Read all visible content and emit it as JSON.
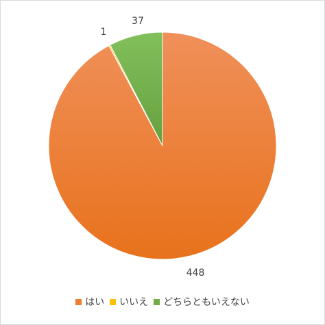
{
  "chart_data": {
    "type": "pie",
    "categories": [
      "はい",
      "いいえ",
      "どちらともいえない"
    ],
    "values": [
      448,
      1,
      37
    ],
    "data_labels": [
      "448",
      "1",
      "37"
    ],
    "colors": [
      "#ed7d31",
      "#ffc000",
      "#70ad47"
    ],
    "start_angle_deg": 0,
    "direction": "clockwise",
    "legend": "bottom",
    "title": ""
  }
}
